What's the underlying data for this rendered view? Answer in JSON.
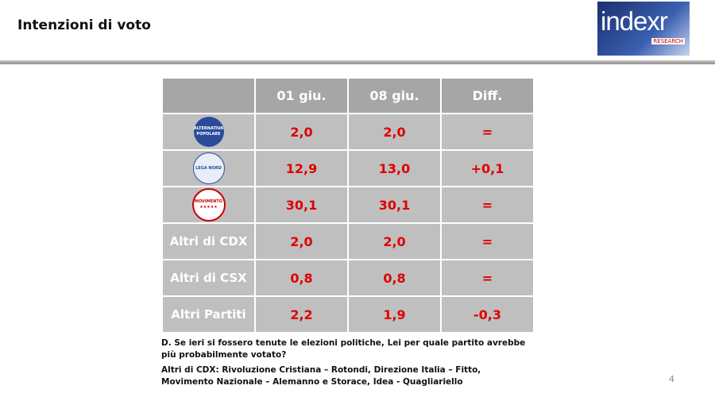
{
  "header": {
    "title": "Intenzioni di voto",
    "logo": {
      "name": "indexr",
      "sub": "RESEARCH"
    }
  },
  "table": {
    "columns": [
      "01 giu.",
      "08 giu.",
      "Diff."
    ],
    "rows": [
      {
        "logo": [
          "ALTERNATIVA",
          "POPOLARE"
        ],
        "cells": [
          "2,0",
          "2,0",
          "="
        ]
      },
      {
        "logo": [
          "LEGA NORD"
        ],
        "cells": [
          "12,9",
          "13,0",
          "+0,1"
        ]
      },
      {
        "logo": [
          "MOVIMENTO",
          "★★★★★"
        ],
        "cells": [
          "30,1",
          "30,1",
          "="
        ]
      },
      {
        "label": "Altri di CDX",
        "cells": [
          "2,0",
          "2,0",
          "="
        ]
      },
      {
        "label": "Altri di CSX",
        "cells": [
          "0,8",
          "0,8",
          "="
        ]
      },
      {
        "label": "Altri Partiti",
        "cells": [
          "2,2",
          "1,9",
          "-0,3"
        ]
      }
    ]
  },
  "notes": [
    "D. Se ieri si fossero tenute le elezioni politiche, Lei per quale partito avrebbe più probabilmente votato?",
    "Altri di CDX: Rivoluzione Cristiana – Rotondi, Direzione Italia – Fitto, Movimento Nazionale – Alemanno e Storace, Idea - Quagliariello"
  ],
  "page": "4"
}
